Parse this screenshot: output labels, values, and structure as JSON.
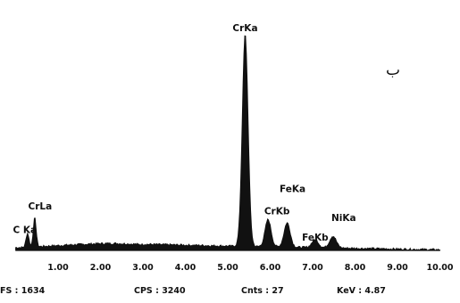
{
  "chart_data": {
    "type": "area",
    "title": "",
    "xlabel": "",
    "ylabel": "",
    "xlim": [
      0,
      10
    ],
    "ylim": [
      0,
      3000
    ],
    "grid": false,
    "legend": "none",
    "panel_letter": "ب",
    "x_ticks": [
      "1.00",
      "2.00",
      "3.00",
      "4.00",
      "5.00",
      "6.00",
      "7.00",
      "8.00",
      "9.00",
      "10.00"
    ],
    "peaks": [
      {
        "label": "C Ka",
        "energy": 0.28,
        "counts": 190
      },
      {
        "label": "CrLa",
        "energy": 0.45,
        "counts": 390
      },
      {
        "label": "CrKa",
        "energy": 5.41,
        "counts": 2880
      },
      {
        "label": "CrKb",
        "energy": 5.95,
        "counts": 370
      },
      {
        "label": "FeKa",
        "energy": 6.4,
        "counts": 330
      },
      {
        "label": "FeKb",
        "energy": 7.06,
        "counts": 110
      },
      {
        "label": "NiKa",
        "energy": 7.48,
        "counts": 160
      }
    ],
    "footer": {
      "fs": "FS : 1634",
      "cps": "CPS : 3240",
      "cnts": "Cnts : 27",
      "kev": "KeV : 4.87"
    },
    "colors": {
      "trace": "#111111",
      "text": "#111111",
      "background": "#ffffff"
    }
  }
}
